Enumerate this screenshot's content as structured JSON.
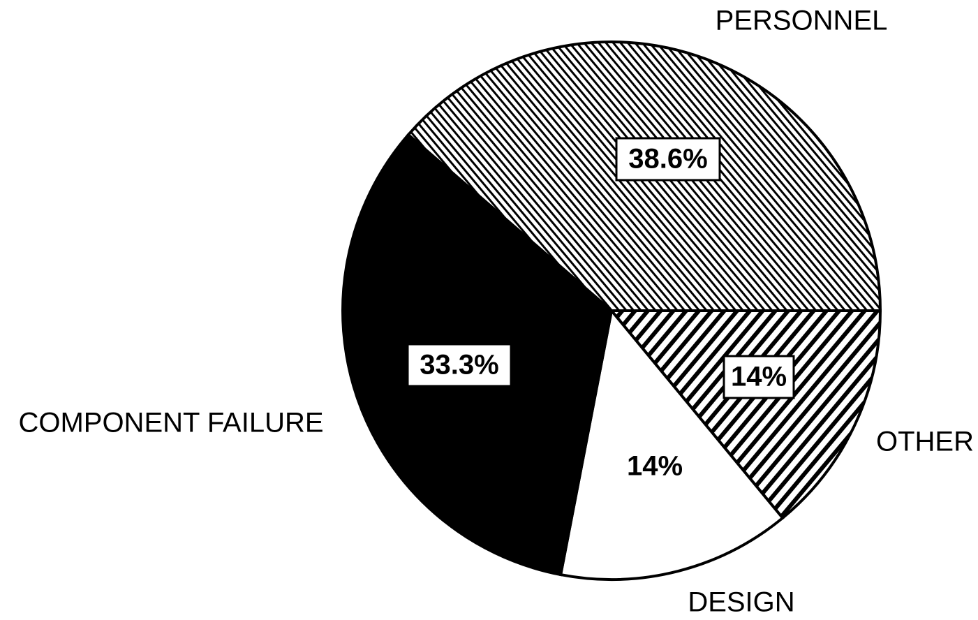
{
  "chart_data": {
    "type": "pie",
    "categories": [
      "OTHER",
      "DESIGN",
      "COMPONENT FAILURE",
      "PERSONNEL"
    ],
    "values": [
      14,
      14,
      33.3,
      38.6
    ],
    "value_labels": [
      "14%",
      "14%",
      "33.3%",
      "38.6%"
    ],
    "fills": [
      "wide-hatch",
      "white",
      "black",
      "fine-hatch"
    ]
  }
}
